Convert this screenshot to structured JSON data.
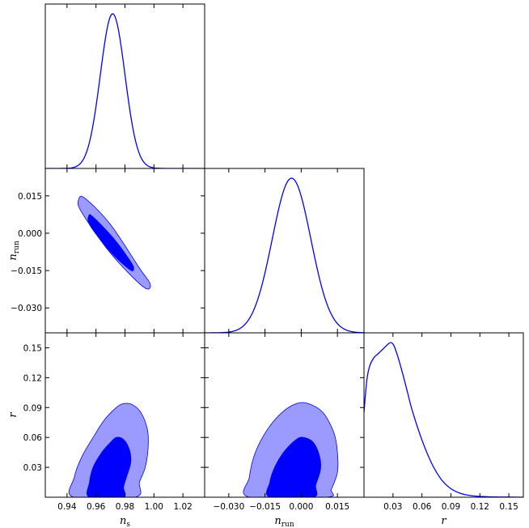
{
  "chart_data": {
    "type": "triangle",
    "parameters": [
      {
        "key": "ns",
        "symbol": "n",
        "subscript": "s",
        "range": [
          0.925,
          1.035
        ],
        "ticks": [
          0.94,
          0.96,
          0.98,
          1.0,
          1.02
        ],
        "tick_labels": [
          "0.94",
          "0.96",
          "0.98",
          "1.00",
          "1.02"
        ]
      },
      {
        "key": "nrun",
        "symbol": "n",
        "subscript": "run",
        "range": [
          -0.04,
          0.026
        ],
        "ticks": [
          -0.03,
          -0.015,
          0.0,
          0.015
        ],
        "tick_labels": [
          "−0.030",
          "−0.015",
          "0.000",
          "0.015"
        ]
      },
      {
        "key": "r",
        "symbol": "r",
        "subscript": "",
        "range": [
          0.0,
          0.165
        ],
        "ticks": [
          0.03,
          0.06,
          0.09,
          0.12,
          0.15
        ],
        "tick_labels": [
          "0.03",
          "0.06",
          "0.09",
          "0.12",
          "0.15"
        ]
      }
    ],
    "marginals": [
      {
        "param": "ns",
        "shape": "gaussian",
        "mean": 0.9715,
        "sigma": 0.0085
      },
      {
        "param": "nrun",
        "shape": "gaussian",
        "mean": -0.004,
        "sigma": 0.008
      },
      {
        "param": "r",
        "shape": "curve",
        "x": [
          0.0,
          0.003,
          0.006,
          0.01,
          0.015,
          0.02,
          0.025,
          0.028,
          0.031,
          0.035,
          0.04,
          0.045,
          0.05,
          0.06,
          0.07,
          0.08,
          0.09,
          0.1,
          0.11,
          0.12,
          0.135,
          0.15,
          0.165
        ],
        "y": [
          0.55,
          0.76,
          0.85,
          0.9,
          0.93,
          0.96,
          0.99,
          1.0,
          0.98,
          0.91,
          0.8,
          0.68,
          0.56,
          0.37,
          0.22,
          0.115,
          0.055,
          0.025,
          0.011,
          0.005,
          0.002,
          0.001,
          0.0
        ]
      }
    ],
    "contours": [
      {
        "x": "ns",
        "y": "nrun",
        "shape": "ellipse",
        "outer": {
          "points": [
            [
              0.948,
              0.0135
            ],
            [
              0.9525,
              0.014
            ],
            [
              0.97,
              0.0035
            ],
            [
              0.99,
              -0.014
            ],
            [
              0.9975,
              -0.0205
            ],
            [
              0.9925,
              -0.0215
            ],
            [
              0.97,
              -0.008
            ],
            [
              0.95,
              0.0085
            ]
          ]
        },
        "inner": {
          "points": [
            [
              0.955,
              0.007
            ],
            [
              0.958,
              0.0065
            ],
            [
              0.972,
              -0.002
            ],
            [
              0.984,
              -0.0115
            ],
            [
              0.986,
              -0.0145
            ],
            [
              0.983,
              -0.0145
            ],
            [
              0.97,
              -0.0075
            ],
            [
              0.956,
              0.003
            ]
          ]
        }
      },
      {
        "x": "ns",
        "y": "r",
        "outer": {
          "points": [
            [
              0.9445,
              0.0
            ],
            [
              0.945,
              0.02
            ],
            [
              0.95,
              0.04
            ],
            [
              0.958,
              0.06
            ],
            [
              0.966,
              0.078
            ],
            [
              0.974,
              0.09
            ],
            [
              0.979,
              0.094
            ],
            [
              0.985,
              0.093
            ],
            [
              0.991,
              0.085
            ],
            [
              0.9955,
              0.068
            ],
            [
              0.996,
              0.05
            ],
            [
              0.994,
              0.03
            ],
            [
              0.99,
              0.015
            ],
            [
              0.987,
              0.0
            ]
          ]
        },
        "inner": {
          "points": [
            [
              0.9555,
              0.0
            ],
            [
              0.9555,
              0.015
            ],
            [
              0.958,
              0.03
            ],
            [
              0.964,
              0.045
            ],
            [
              0.97,
              0.055
            ],
            [
              0.974,
              0.06
            ],
            [
              0.979,
              0.058
            ],
            [
              0.983,
              0.048
            ],
            [
              0.984,
              0.035
            ],
            [
              0.981,
              0.02
            ],
            [
              0.979,
              0.01
            ],
            [
              0.9785,
              0.0
            ]
          ]
        }
      },
      {
        "x": "nrun",
        "y": "r",
        "outer": {
          "points": [
            [
              -0.0215,
              0.0
            ],
            [
              -0.0215,
              0.02
            ],
            [
              -0.019,
              0.045
            ],
            [
              -0.014,
              0.068
            ],
            [
              -0.008,
              0.085
            ],
            [
              -0.002,
              0.094
            ],
            [
              0.003,
              0.094
            ],
            [
              0.009,
              0.085
            ],
            [
              0.0135,
              0.065
            ],
            [
              0.015,
              0.045
            ],
            [
              0.015,
              0.025
            ],
            [
              0.0125,
              0.008
            ],
            [
              0.0105,
              0.0
            ]
          ]
        },
        "inner": {
          "points": [
            [
              -0.013,
              0.0
            ],
            [
              -0.013,
              0.015
            ],
            [
              -0.011,
              0.03
            ],
            [
              -0.007,
              0.046
            ],
            [
              -0.002,
              0.058
            ],
            [
              0.001,
              0.06
            ],
            [
              0.005,
              0.055
            ],
            [
              0.0075,
              0.042
            ],
            [
              0.008,
              0.028
            ],
            [
              0.006,
              0.012
            ],
            [
              0.005,
              0.0
            ]
          ]
        }
      }
    ],
    "colors": {
      "line": "#0000ff",
      "inner_fill": "#0000ff",
      "outer_fill": "#9b9bff",
      "axes": "#000000"
    },
    "grid": false
  }
}
